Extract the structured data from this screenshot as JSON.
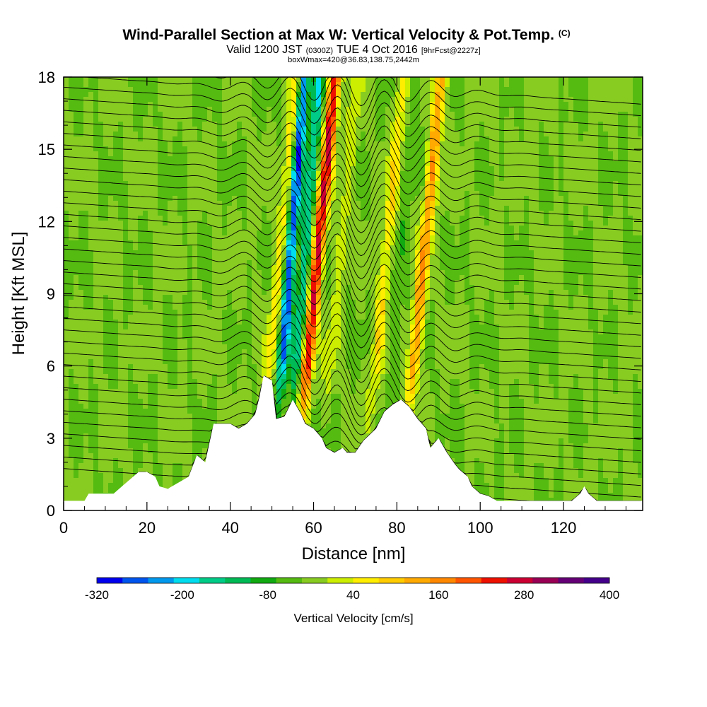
{
  "chart_data": {
    "type": "heatmap",
    "title": "Wind-Parallel Section at Max W: Vertical Velocity & Pot.Temp.",
    "title_mark": "(C)",
    "subtitle_parts": [
      "Valid 1200 JST",
      "(0300Z)",
      "TUE 4 Oct 2016",
      "[9hrFcst@2227z]"
    ],
    "subtitle2": "boxWmax=420@36.83,138.75,2442m",
    "xlabel": "Distance [nm]",
    "ylabel": "Height [Kft MSL]",
    "xlim": [
      0,
      139
    ],
    "ylim": [
      0,
      18
    ],
    "x_ticks": [
      "0",
      "20",
      "40",
      "60",
      "80",
      "100",
      "120"
    ],
    "x_tick_values": [
      0,
      20,
      40,
      60,
      80,
      100,
      120
    ],
    "y_ticks": [
      "0",
      "3",
      "6",
      "9",
      "12",
      "15",
      "18"
    ],
    "y_tick_values": [
      0,
      3,
      6,
      9,
      12,
      15,
      18
    ],
    "terrain": [
      [
        0,
        0.4
      ],
      [
        5,
        0.4
      ],
      [
        6,
        0.7
      ],
      [
        10,
        0.7
      ],
      [
        12,
        0.7
      ],
      [
        14,
        1.0
      ],
      [
        16,
        1.3
      ],
      [
        18,
        1.6
      ],
      [
        20,
        1.6
      ],
      [
        22,
        1.4
      ],
      [
        23,
        1.0
      ],
      [
        25,
        0.9
      ],
      [
        27,
        1.1
      ],
      [
        28,
        1.2
      ],
      [
        30,
        1.4
      ],
      [
        32,
        2.3
      ],
      [
        34,
        2.0
      ],
      [
        36,
        3.6
      ],
      [
        40,
        3.6
      ],
      [
        42,
        3.4
      ],
      [
        44,
        3.6
      ],
      [
        46,
        4.0
      ],
      [
        47,
        4.7
      ],
      [
        48,
        5.6
      ],
      [
        50,
        5.4
      ],
      [
        51,
        3.8
      ],
      [
        53,
        3.9
      ],
      [
        55,
        4.6
      ],
      [
        57,
        4.0
      ],
      [
        58,
        3.6
      ],
      [
        60,
        3.4
      ],
      [
        62,
        3.0
      ],
      [
        63,
        2.6
      ],
      [
        65,
        2.4
      ],
      [
        67,
        2.6
      ],
      [
        68,
        2.4
      ],
      [
        70,
        2.4
      ],
      [
        72,
        2.9
      ],
      [
        75,
        3.4
      ],
      [
        77,
        4.1
      ],
      [
        79,
        4.4
      ],
      [
        81,
        4.6
      ],
      [
        83,
        4.3
      ],
      [
        85,
        3.8
      ],
      [
        87,
        3.4
      ],
      [
        88,
        2.6
      ],
      [
        90,
        3.0
      ],
      [
        92,
        2.4
      ],
      [
        94,
        1.9
      ],
      [
        95,
        1.7
      ],
      [
        97,
        1.4
      ],
      [
        98,
        1.0
      ],
      [
        100,
        0.7
      ],
      [
        102,
        0.6
      ],
      [
        104,
        0.4
      ],
      [
        110,
        0.4
      ],
      [
        116,
        0.4
      ],
      [
        122,
        0.4
      ],
      [
        124,
        0.7
      ],
      [
        125,
        1.0
      ],
      [
        126,
        0.7
      ],
      [
        128,
        0.4
      ],
      [
        139,
        0.4
      ]
    ],
    "updrafts": [
      [
        49.5,
        100
      ],
      [
        58.5,
        330
      ],
      [
        75,
        110
      ],
      [
        84,
        200
      ],
      [
        64,
        60
      ]
    ],
    "downdrafts": [
      [
        52.5,
        -280
      ],
      [
        56,
        -160
      ],
      [
        79,
        -40
      ]
    ],
    "theta_levels": 36,
    "colorbar": {
      "label": "Vertical Velocity [cm/s]",
      "tick_labels": [
        "-320",
        "-200",
        "-80",
        "40",
        "160",
        "280",
        "400"
      ],
      "min": -320,
      "max": 400,
      "step": 40,
      "colors": [
        "#0000ee",
        "#0055ee",
        "#0099ee",
        "#00ddee",
        "#00cc88",
        "#00bb55",
        "#11aa11",
        "#55bb11",
        "#88cc22",
        "#ccee00",
        "#ffee00",
        "#ffcc00",
        "#ffaa00",
        "#ff8800",
        "#ff5500",
        "#ee1100",
        "#cc0033",
        "#990055",
        "#660077",
        "#44008a"
      ]
    }
  }
}
